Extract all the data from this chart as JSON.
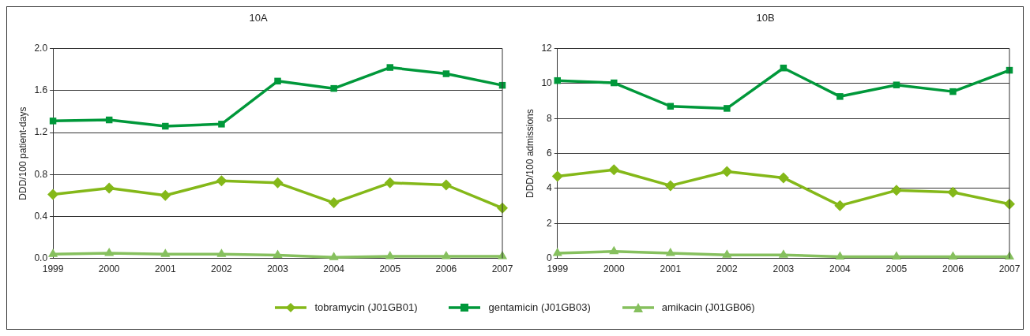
{
  "chart_data": [
    {
      "type": "line",
      "title": "10A",
      "ylabel": "DDD/100 patient-days",
      "categories": [
        "1999",
        "2000",
        "2001",
        "2002",
        "2003",
        "2004",
        "2005",
        "2006",
        "2007"
      ],
      "ylim": [
        0,
        2
      ],
      "yticks": [
        {
          "value": 0,
          "label": "0.0"
        },
        0.4,
        0.8,
        1.2,
        1.6,
        {
          "value": 2,
          "label": "2.0"
        }
      ],
      "grid": "y",
      "legend": "bottom",
      "series": [
        {
          "name": "tobramycin (J01GB01)",
          "color": "#84b819",
          "marker": "diamond",
          "values": [
            0.61,
            0.67,
            0.6,
            0.74,
            0.72,
            0.53,
            0.72,
            0.7,
            0.48
          ]
        },
        {
          "name": "gentamicin (J01GB03)",
          "color": "#00983a",
          "marker": "square",
          "values": [
            1.31,
            1.32,
            1.26,
            1.28,
            1.69,
            1.62,
            1.82,
            1.76,
            1.65
          ]
        },
        {
          "name": "amikacin (J01GB06)",
          "color": "#86c05e",
          "marker": "triangle",
          "values": [
            0.04,
            0.05,
            0.04,
            0.04,
            0.03,
            0.01,
            0.02,
            0.02,
            0.02
          ]
        }
      ]
    },
    {
      "type": "line",
      "title": "10B",
      "ylabel": "DDD/100 admissions",
      "categories": [
        "1999",
        "2000",
        "2001",
        "2002",
        "2003",
        "2004",
        "2005",
        "2006",
        "2007"
      ],
      "ylim": [
        0,
        12
      ],
      "yticks": [
        0,
        2,
        4,
        6,
        8,
        10,
        12
      ],
      "grid": "y",
      "legend": "bottom",
      "series": [
        {
          "name": "tobramycin (J01GB01)",
          "color": "#84b819",
          "marker": "diamond",
          "values": [
            4.7,
            5.07,
            4.16,
            4.97,
            4.61,
            3.02,
            3.89,
            3.78,
            3.11
          ]
        },
        {
          "name": "gentamicin (J01GB03)",
          "color": "#00983a",
          "marker": "square",
          "values": [
            10.17,
            10.04,
            8.7,
            8.58,
            10.89,
            9.26,
            9.92,
            9.54,
            10.76
          ]
        },
        {
          "name": "amikacin (J01GB06)",
          "color": "#86c05e",
          "marker": "triangle",
          "values": [
            0.3,
            0.4,
            0.3,
            0.2,
            0.2,
            0.1,
            0.1,
            0.1,
            0.1
          ]
        }
      ]
    }
  ]
}
